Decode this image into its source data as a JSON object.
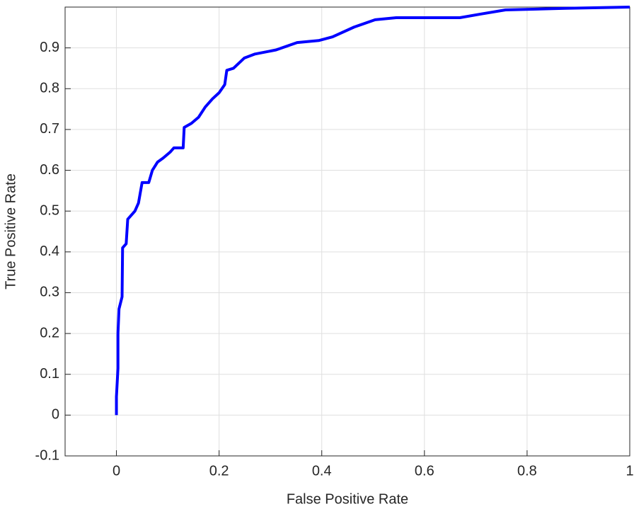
{
  "chart_data": {
    "type": "line",
    "xlabel": "False Positive Rate",
    "ylabel": "True Positive Rate",
    "x": [
      0,
      0,
      0.003,
      0.003,
      0.005,
      0.011,
      0.012,
      0.019,
      0.022,
      0.029,
      0.036,
      0.043,
      0.05,
      0.063,
      0.07,
      0.08,
      0.091,
      0.105,
      0.112,
      0.13,
      0.132,
      0.146,
      0.16,
      0.173,
      0.187,
      0.2,
      0.211,
      0.215,
      0.228,
      0.249,
      0.27,
      0.311,
      0.352,
      0.394,
      0.421,
      0.463,
      0.504,
      0.545,
      0.669,
      0.71,
      0.758,
      0.875,
      1
    ],
    "values": [
      0,
      0.045,
      0.115,
      0.2,
      0.26,
      0.29,
      0.41,
      0.42,
      0.48,
      0.49,
      0.5,
      0.52,
      0.57,
      0.57,
      0.6,
      0.62,
      0.63,
      0.645,
      0.655,
      0.655,
      0.705,
      0.715,
      0.73,
      0.755,
      0.775,
      0.79,
      0.81,
      0.845,
      0.85,
      0.875,
      0.885,
      0.895,
      0.913,
      0.918,
      0.927,
      0.951,
      0.969,
      0.974,
      0.974,
      0.983,
      0.993,
      0.997,
      1
    ],
    "color": "#0000ff",
    "xlim": [
      -0.1,
      1
    ],
    "ylim": [
      -0.1,
      1
    ],
    "xticks": [
      0,
      0.2,
      0.4,
      0.6,
      0.8,
      1
    ],
    "yticks": [
      -0.1,
      0,
      0.1,
      0.2,
      0.3,
      0.4,
      0.5,
      0.6,
      0.7,
      0.8,
      0.9
    ],
    "grid": true
  }
}
